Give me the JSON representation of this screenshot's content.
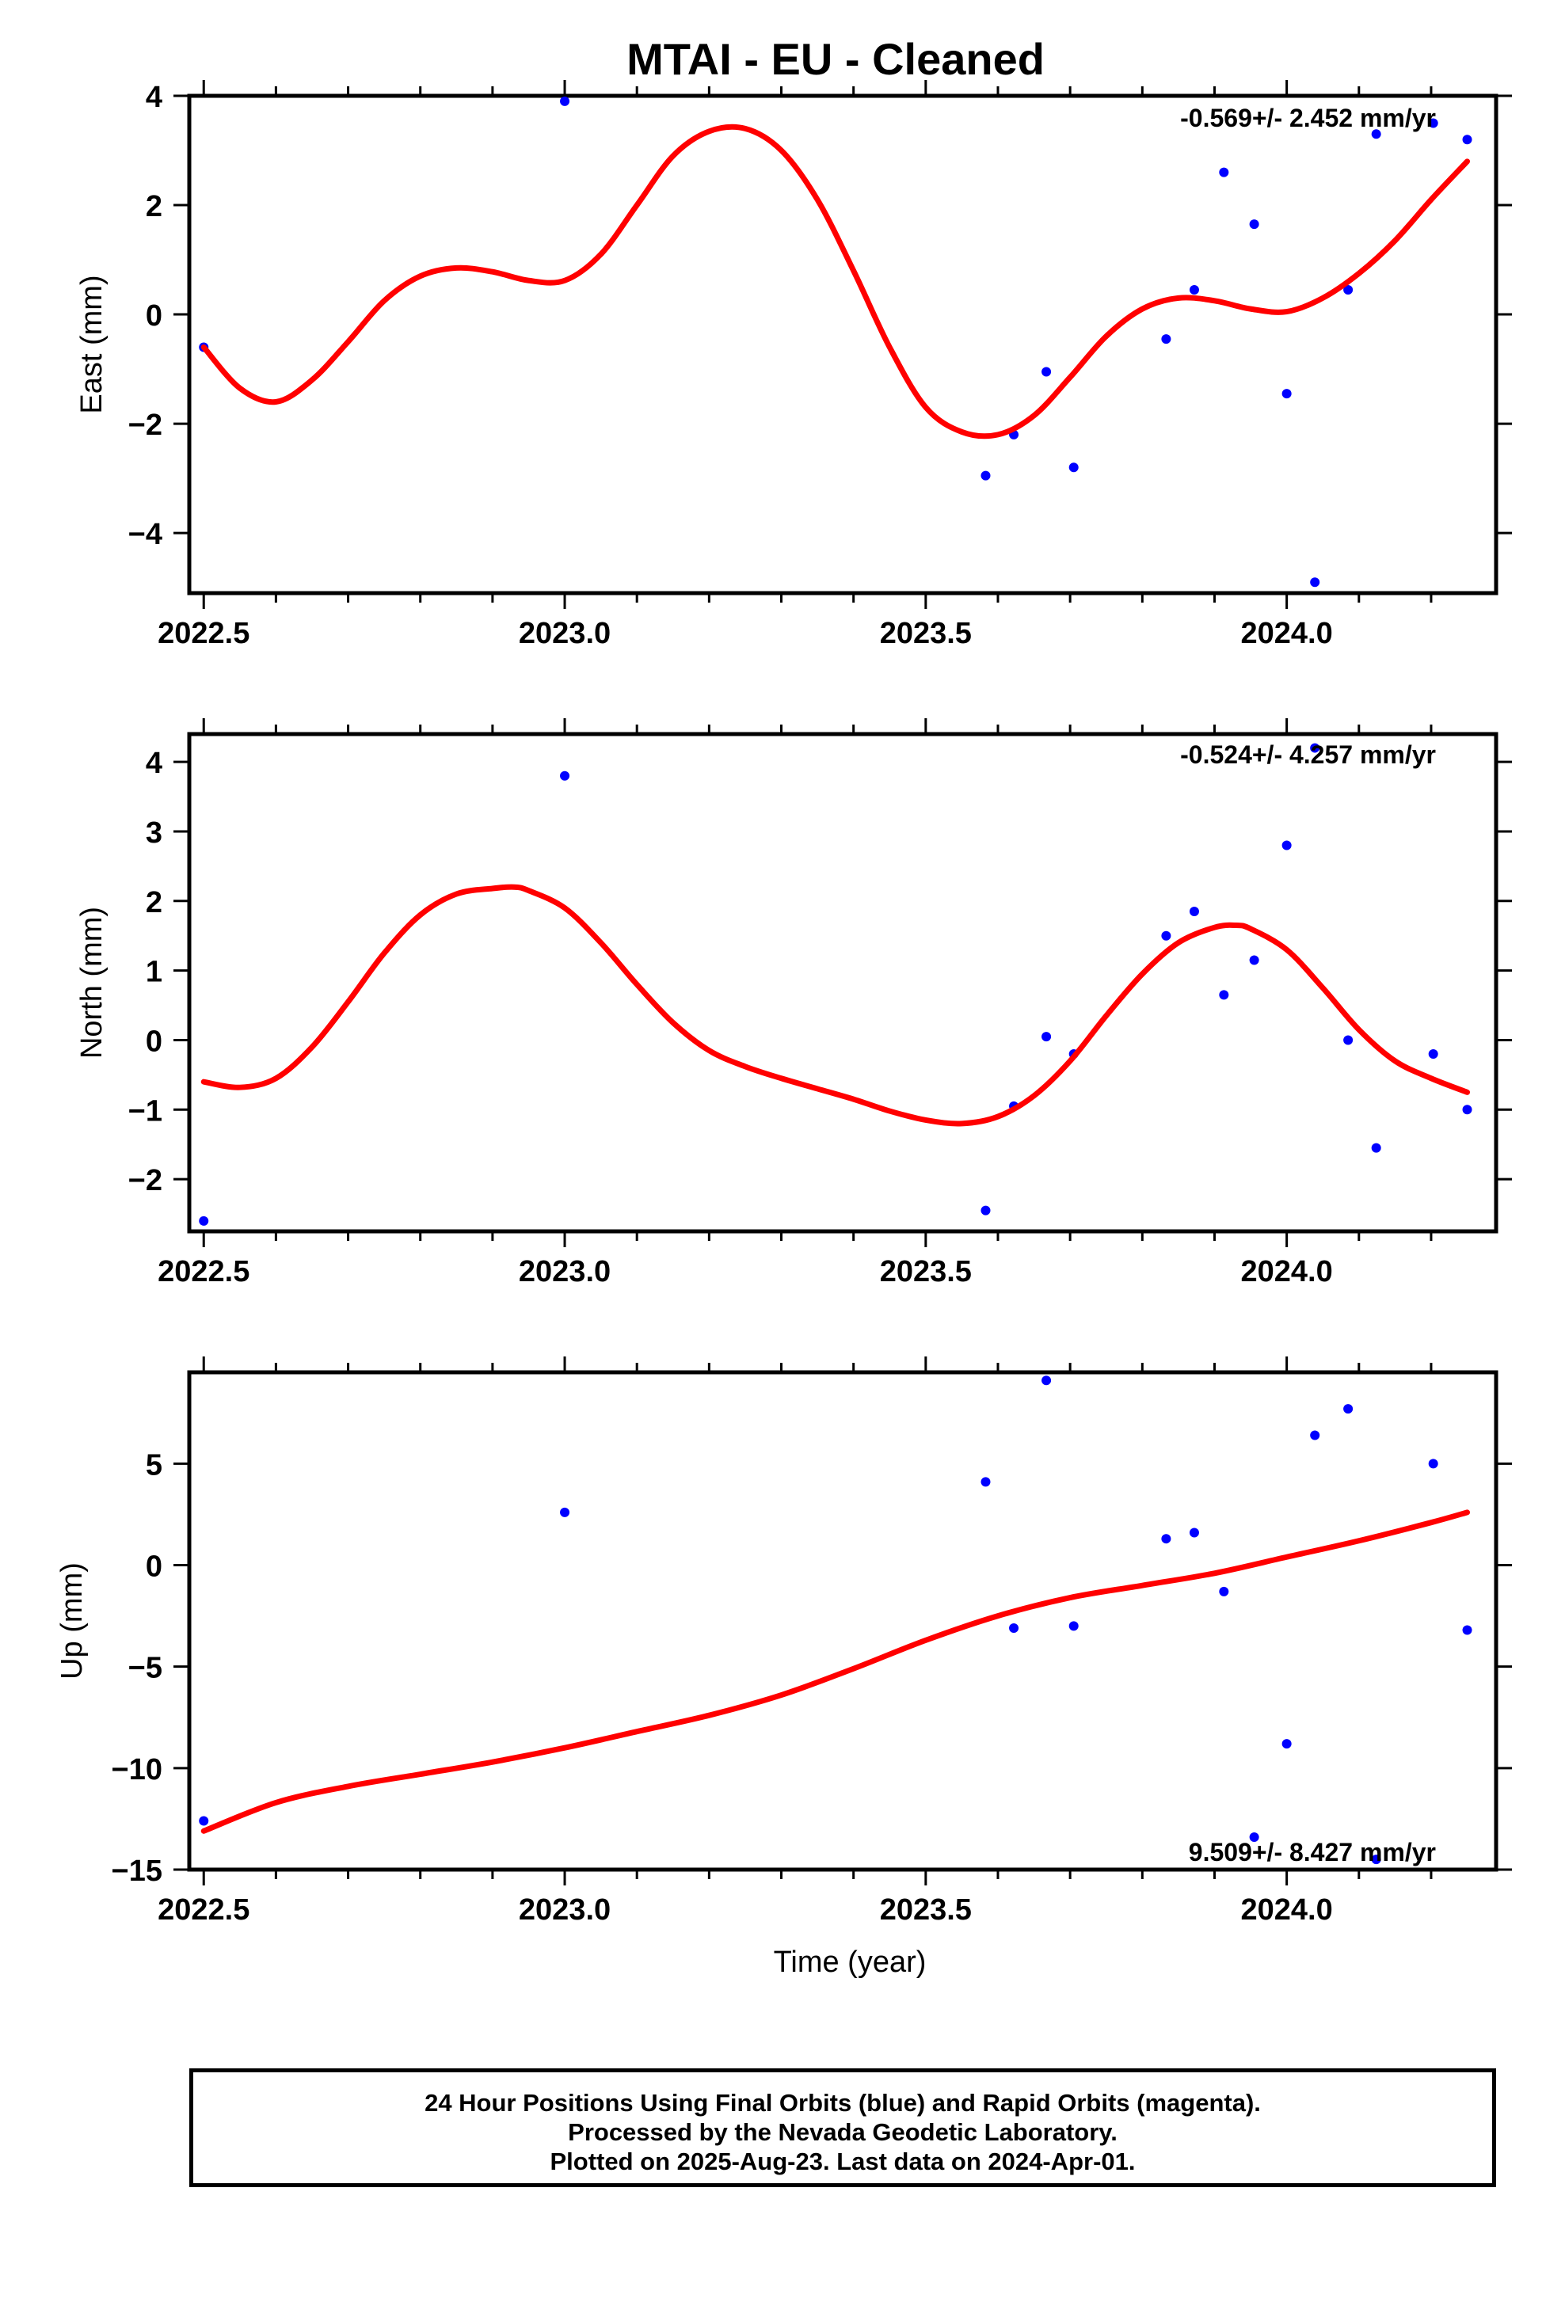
{
  "title": "MTAI  - EU - Cleaned",
  "footer": {
    "line1": "24 Hour Positions Using Final Orbits (blue) and Rapid Orbits (magenta).",
    "line2": "Processed by the Nevada Geodetic Laboratory.",
    "line3": "Plotted on 2025-Aug-23. Last data on 2024-Apr-01."
  },
  "colors": {
    "points": "#0000ff",
    "fit": "#ff0000",
    "axes": "#000000"
  },
  "chart_data": [
    {
      "type": "scatter",
      "ylabel": "East (mm)",
      "xlabel": "",
      "rate": "-0.569+/- 2.452 mm/yr",
      "rate_position": "top-right",
      "xlim": [
        2022.48,
        2024.29
      ],
      "ylim": [
        -5.1,
        4.0
      ],
      "x_ticks": [
        2022.5,
        2023.0,
        2023.5,
        2024.0
      ],
      "x_tick_labels": [
        "2022.5",
        "2023.0",
        "2023.5",
        "2024.0"
      ],
      "y_ticks": [
        4,
        2,
        0,
        -2,
        -4
      ],
      "y_tick_labels": [
        "4",
        "2",
        "0",
        "−2",
        "−4"
      ],
      "points": {
        "x": [
          2022.5,
          2023.0,
          2023.583,
          2023.622,
          2023.667,
          2023.705,
          2023.833,
          2023.872,
          2023.913,
          2023.955,
          2024.0,
          2024.039,
          2024.085,
          2024.124,
          2024.203,
          2024.25
        ],
        "y": [
          -0.6,
          3.9,
          -2.95,
          -2.2,
          -1.05,
          -2.8,
          -0.45,
          0.45,
          2.6,
          1.65,
          -1.45,
          -4.9,
          0.45,
          3.3,
          3.5,
          3.2
        ]
      },
      "fit": {
        "x": [
          2022.5,
          2022.55,
          2022.6,
          2022.65,
          2022.7,
          2022.75,
          2022.8,
          2022.85,
          2022.9,
          2022.95,
          2023.0,
          2023.05,
          2023.1,
          2023.15,
          2023.2,
          2023.25,
          2023.3,
          2023.35,
          2023.4,
          2023.45,
          2023.5,
          2023.55,
          2023.6,
          2023.65,
          2023.7,
          2023.75,
          2023.8,
          2023.85,
          2023.9,
          2023.95,
          2024.0,
          2024.05,
          2024.1,
          2024.15,
          2024.2,
          2024.25
        ],
        "y": [
          -0.6,
          -1.35,
          -1.6,
          -1.2,
          -0.5,
          0.25,
          0.7,
          0.85,
          0.78,
          0.62,
          0.62,
          1.1,
          2.0,
          2.9,
          3.35,
          3.4,
          3.0,
          2.1,
          0.8,
          -0.6,
          -1.7,
          -2.15,
          -2.2,
          -1.85,
          -1.15,
          -0.4,
          0.1,
          0.3,
          0.25,
          0.1,
          0.05,
          0.3,
          0.75,
          1.35,
          2.1,
          2.8
        ]
      }
    },
    {
      "type": "scatter",
      "ylabel": "North (mm)",
      "xlabel": "",
      "rate": "-0.524+/- 4.257 mm/yr",
      "rate_position": "top-right",
      "xlim": [
        2022.48,
        2024.29
      ],
      "ylim": [
        -2.75,
        4.4
      ],
      "x_ticks": [
        2022.5,
        2023.0,
        2023.5,
        2024.0
      ],
      "x_tick_labels": [
        "2022.5",
        "2023.0",
        "2023.5",
        "2024.0"
      ],
      "y_ticks": [
        4,
        3,
        2,
        1,
        0,
        -1,
        -2
      ],
      "y_tick_labels": [
        "4",
        "3",
        "2",
        "1",
        "0",
        "−1",
        "−2"
      ],
      "points": {
        "x": [
          2022.5,
          2023.0,
          2023.583,
          2023.622,
          2023.667,
          2023.705,
          2023.833,
          2023.872,
          2023.913,
          2023.955,
          2024.0,
          2024.039,
          2024.085,
          2024.124,
          2024.203,
          2024.25
        ],
        "y": [
          -2.6,
          3.8,
          -2.45,
          -0.95,
          0.05,
          -0.2,
          1.5,
          1.85,
          0.65,
          1.15,
          2.8,
          4.2,
          0.0,
          -1.55,
          -0.2,
          -1.0
        ]
      },
      "fit": {
        "x": [
          2022.5,
          2022.55,
          2022.6,
          2022.65,
          2022.7,
          2022.75,
          2022.8,
          2022.85,
          2022.9,
          2022.93,
          2022.95,
          2023.0,
          2023.05,
          2023.1,
          2023.15,
          2023.2,
          2023.25,
          2023.3,
          2023.35,
          2023.4,
          2023.45,
          2023.5,
          2023.55,
          2023.6,
          2023.65,
          2023.7,
          2023.75,
          2023.8,
          2023.85,
          2023.9,
          2023.93,
          2023.95,
          2024.0,
          2024.05,
          2024.1,
          2024.15,
          2024.2,
          2024.25
        ],
        "y": [
          -0.6,
          -0.68,
          -0.55,
          -0.1,
          0.55,
          1.25,
          1.8,
          2.1,
          2.18,
          2.2,
          2.15,
          1.9,
          1.4,
          0.8,
          0.25,
          -0.15,
          -0.38,
          -0.55,
          -0.7,
          -0.85,
          -1.02,
          -1.15,
          -1.2,
          -1.1,
          -0.8,
          -0.3,
          0.35,
          0.95,
          1.4,
          1.62,
          1.65,
          1.6,
          1.3,
          0.75,
          0.15,
          -0.3,
          -0.55,
          -0.75
        ]
      }
    },
    {
      "type": "scatter",
      "ylabel": "Up (mm)",
      "xlabel": "Time (year)",
      "rate": "9.509+/- 8.427 mm/yr",
      "rate_position": "bottom-right",
      "xlim": [
        2022.48,
        2024.29
      ],
      "ylim": [
        -15,
        9.5
      ],
      "x_ticks": [
        2022.5,
        2023.0,
        2023.5,
        2024.0
      ],
      "x_tick_labels": [
        "2022.5",
        "2023.0",
        "2023.5",
        "2024.0"
      ],
      "y_ticks": [
        5,
        0,
        -5,
        -10,
        -15
      ],
      "y_tick_labels": [
        "5",
        "0",
        "−5",
        "−10",
        "−15"
      ],
      "points": {
        "x": [
          2022.5,
          2023.0,
          2023.583,
          2023.622,
          2023.667,
          2023.705,
          2023.833,
          2023.872,
          2023.913,
          2023.955,
          2024.0,
          2024.039,
          2024.085,
          2024.124,
          2024.203,
          2024.25
        ],
        "y": [
          -12.6,
          2.6,
          4.1,
          -3.1,
          9.1,
          -3.0,
          1.3,
          1.6,
          -1.3,
          -13.4,
          -8.8,
          6.4,
          7.7,
          -14.5,
          5.0,
          -3.2
        ]
      },
      "fit": {
        "x": [
          2022.5,
          2022.6,
          2022.7,
          2022.8,
          2022.9,
          2023.0,
          2023.1,
          2023.2,
          2023.3,
          2023.4,
          2023.5,
          2023.6,
          2023.7,
          2023.8,
          2023.9,
          2024.0,
          2024.1,
          2024.2,
          2024.25
        ],
        "y": [
          -13.1,
          -11.7,
          -10.9,
          -10.3,
          -9.7,
          -9.0,
          -8.2,
          -7.4,
          -6.4,
          -5.1,
          -3.7,
          -2.5,
          -1.6,
          -1.0,
          -0.4,
          0.4,
          1.2,
          2.1,
          2.6
        ]
      }
    }
  ]
}
